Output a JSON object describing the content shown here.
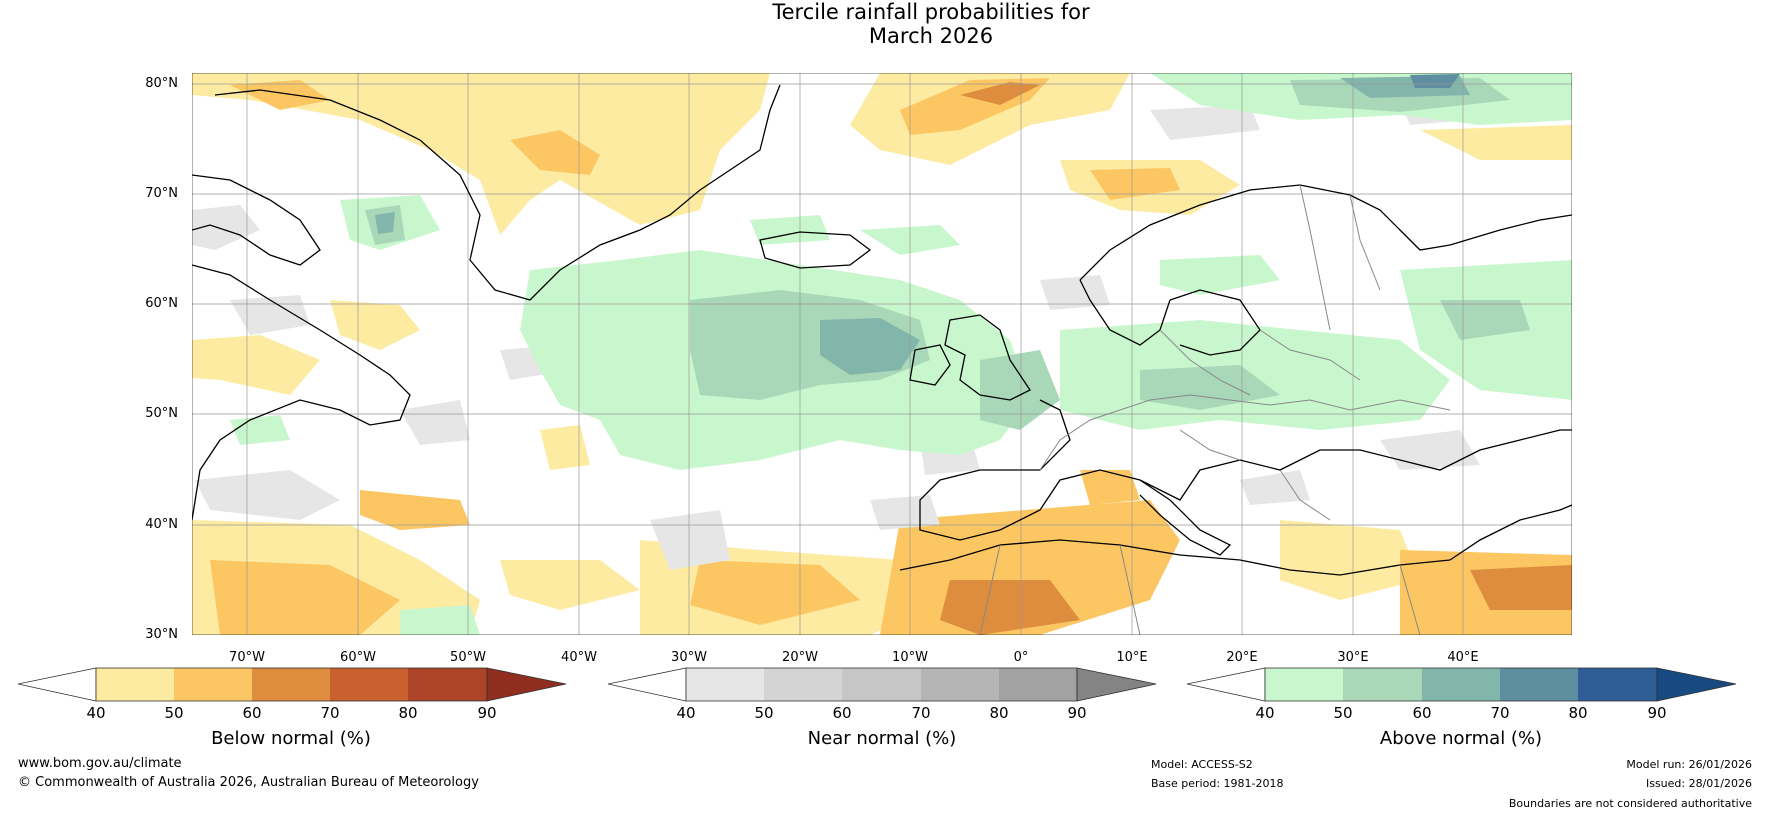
{
  "title": {
    "line1": "Tercile rainfall probabilities for",
    "line2": "March 2026"
  },
  "map": {
    "lat_labels": [
      "80°N",
      "70°N",
      "60°N",
      "50°N",
      "40°N",
      "30°N"
    ],
    "lon_labels": [
      "70°W",
      "60°W",
      "50°W",
      "40°W",
      "30°W",
      "20°W",
      "10°W",
      "0°",
      "10°E",
      "20°E",
      "30°E",
      "40°E"
    ]
  },
  "colorbars": [
    {
      "title": "Below normal (%)",
      "ticks": [
        "40",
        "50",
        "60",
        "70",
        "80",
        "90"
      ],
      "low_color": "#ffffff",
      "colors": [
        "#fdeba1",
        "#fcc763",
        "#de8d3f",
        "#c9602d",
        "#ad4428"
      ],
      "high_color": "#8f2e1f"
    },
    {
      "title": "Near normal (%)",
      "ticks": [
        "40",
        "50",
        "60",
        "70",
        "80",
        "90"
      ],
      "low_color": "#ffffff",
      "colors": [
        "#e6e6e6",
        "#d4d4d4",
        "#c6c6c6",
        "#b5b5b5",
        "#a2a2a2"
      ],
      "high_color": "#848484"
    },
    {
      "title": "Above normal (%)",
      "ticks": [
        "40",
        "50",
        "60",
        "70",
        "80",
        "90"
      ],
      "low_color": "#ffffff",
      "colors": [
        "#c9f7cd",
        "#a8d8b8",
        "#83b6ab",
        "#5d8fa1",
        "#2e5e95"
      ],
      "high_color": "#174a80"
    }
  ],
  "footer": {
    "website": "www.bom.gov.au/climate",
    "copyright": "© Commonwealth of Australia 2026, Australian Bureau of Meteorology",
    "model": "Model: ACCESS-S2",
    "base_period": "Base period: 1981-2018",
    "model_run": "Model run: 26/01/2026",
    "issued": "Issued: 28/01/2026",
    "disclaimer": "Boundaries are not considered authoritative"
  }
}
